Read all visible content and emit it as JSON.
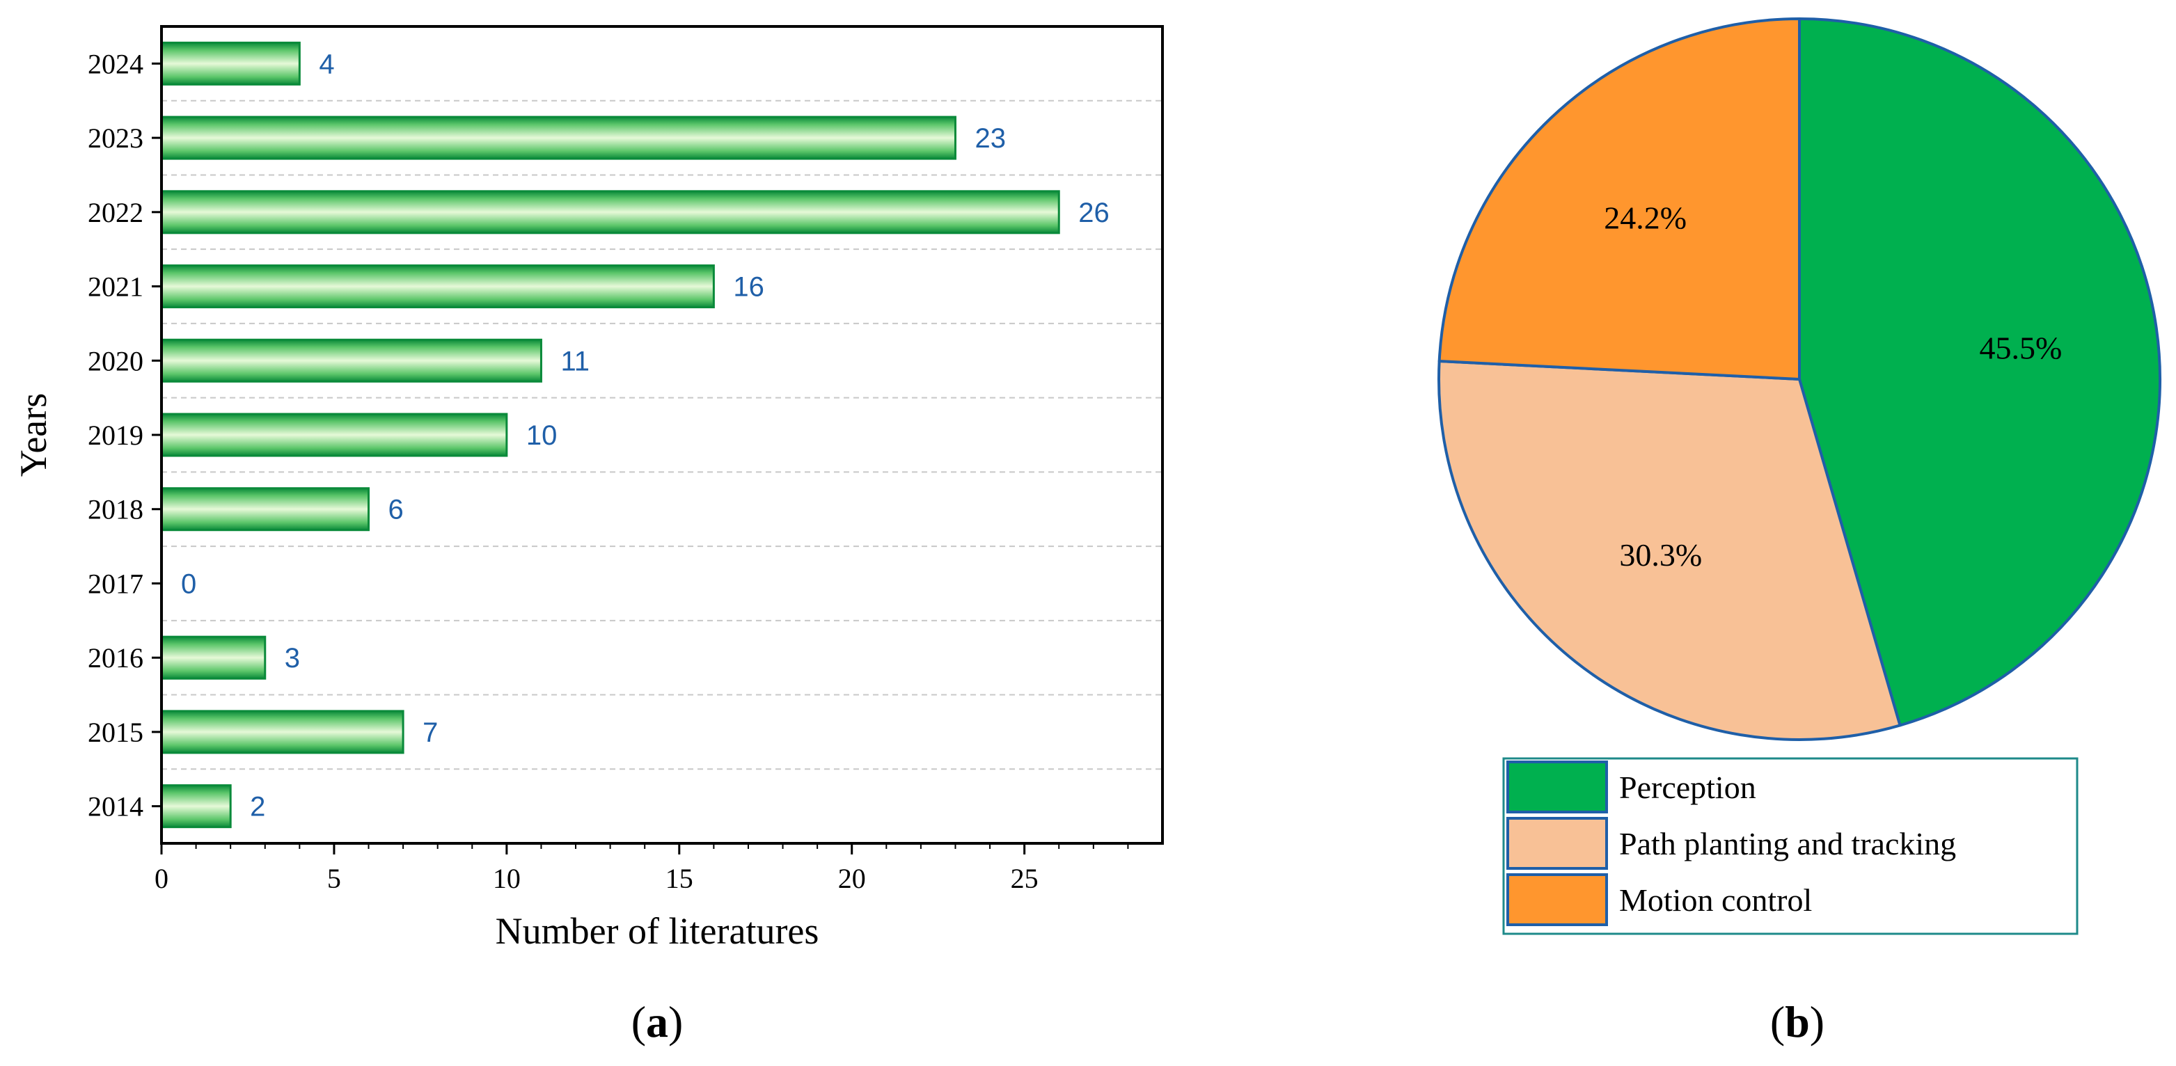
{
  "colors": {
    "bar_edge": "#0a8a3a",
    "bar_light": "#e6f9d8",
    "bar_mid": "#5cc66a",
    "value_label": "#1f5fa8",
    "grid": "#c8c8c8",
    "pie_edge": "#1f5fa8",
    "legend_edge": "#1e8a8a"
  },
  "chart_data": [
    {
      "type": "bar",
      "orientation": "horizontal",
      "categories": [
        "2014",
        "2015",
        "2016",
        "2017",
        "2018",
        "2019",
        "2020",
        "2021",
        "2022",
        "2023",
        "2024"
      ],
      "values": [
        2,
        7,
        3,
        0,
        6,
        10,
        11,
        16,
        26,
        23,
        4
      ],
      "value_labels": [
        "2",
        "7",
        "3",
        "0",
        "6",
        "10",
        "11",
        "16",
        "26",
        "23",
        "4"
      ],
      "xlabel": "Number of literatures",
      "ylabel": "Years",
      "xlim": [
        0,
        29
      ],
      "xticks": [
        0,
        5,
        10,
        15,
        20,
        25
      ],
      "xtick_labels": [
        "0",
        "5",
        "10",
        "15",
        "20",
        "25"
      ],
      "grid": "horizontal dashed",
      "caption_letter": "a"
    },
    {
      "type": "pie",
      "labels": [
        "Perception",
        "Path planting and tracking",
        "Motion control"
      ],
      "values": [
        45.5,
        30.3,
        24.2
      ],
      "value_labels": [
        "45.5%",
        "30.3%",
        "24.2%"
      ],
      "colors": [
        "#00b04f",
        "#f8c196",
        "#ff962e"
      ],
      "legend_position": "bottom",
      "caption_letter": "b"
    }
  ]
}
